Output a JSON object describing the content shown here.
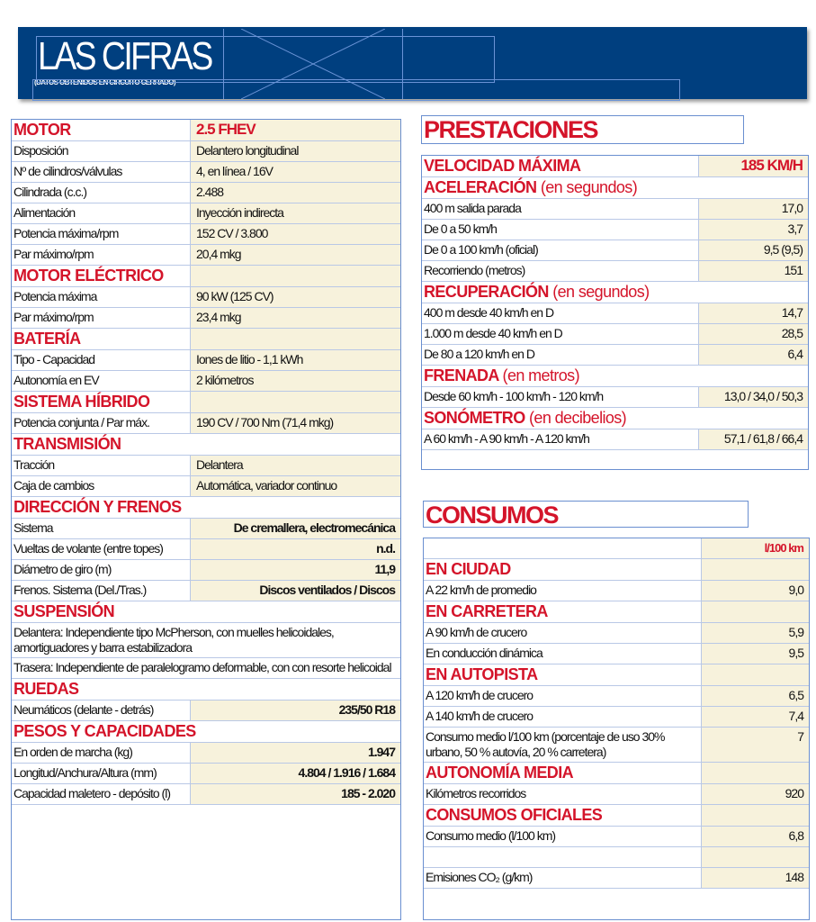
{
  "header": {
    "title": "LAS CIFRAS",
    "subtitle": "(DATOS OBTENIDOS EN CIRCUITO CERRADO)",
    "color": "#003f7f"
  },
  "accent_color": "#d4142a",
  "specs": {
    "sections": [
      {
        "title": "MOTOR",
        "value": "2.5 FHEV",
        "rows": [
          [
            "Disposición",
            "Delantero longitudinal"
          ],
          [
            "Nº de cilindros/válvulas",
            "4, en línea / 16V"
          ],
          [
            "Cilindrada (c.c.)",
            "2.488"
          ],
          [
            "Alimentación",
            "Inyección indirecta"
          ],
          [
            "Potencia máxima/rpm",
            "152 CV / 3.800"
          ],
          [
            "Par máximo/rpm",
            "20,4 mkg"
          ]
        ]
      },
      {
        "title": "MOTOR ELÉCTRICO",
        "value": "",
        "rows": [
          [
            "Potencia máxima",
            "90 kW (125 CV)"
          ],
          [
            "Par máximo/rpm",
            "23,4 mkg"
          ]
        ]
      },
      {
        "title": "BATERÍA",
        "value": "",
        "rows": [
          [
            "Tipo - Capacidad",
            "Iones de litio - 1,1 kWh"
          ],
          [
            "Autonomía en EV",
            "2 kilómetros"
          ]
        ]
      },
      {
        "title": "SISTEMA HÍBRIDO",
        "value": "",
        "rows": [
          [
            "Potencia conjunta / Par máx.",
            "190 CV / 700 Nm (71,4 mkg)"
          ]
        ]
      },
      {
        "title": "TRANSMISIÓN",
        "rows": [
          [
            "Tracción",
            "Delantera"
          ],
          [
            "Caja de cambios",
            "Automática, variador continuo"
          ]
        ]
      },
      {
        "title": "DIRECCIÓN Y FRENOS",
        "rows": [
          [
            "Sistema",
            "De cremallera, electromecánica"
          ],
          [
            "Vueltas de volante (entre topes)",
            "n.d."
          ],
          [
            "Diámetro de giro (m)",
            "11,9"
          ],
          [
            "Frenos. Sistema (Del./Tras.)",
            "Discos ventilados / Discos"
          ]
        ]
      },
      {
        "title": "SUSPENSIÓN",
        "rows": [
          [
            "Delantera: Independiente tipo McPherson, con muelles helicoidales, amortiguadores y barra estabilizadora"
          ],
          [
            "Trasera: Independiente de paralelogramo deformable, con con resorte helicoidal"
          ]
        ]
      },
      {
        "title": "RUEDAS",
        "rows": [
          [
            "Neumáticos (delante - detrás)",
            "235/50 R18"
          ]
        ]
      },
      {
        "title": "PESOS Y CAPACIDADES",
        "rows": [
          [
            "En orden de marcha (kg)",
            "1.947"
          ],
          [
            "Longitud/Anchura/Altura (mm)",
            "4.804 / 1.916 / 1.684"
          ],
          [
            "Capacidad maletero - depósito (l)",
            "185 - 2.020"
          ]
        ]
      }
    ]
  },
  "prestaciones": {
    "title": "PRESTACIONES",
    "sections": [
      {
        "title": "VELOCIDAD MÁXIMA",
        "value": "185 KM/H",
        "rows": []
      },
      {
        "title": "ACELERACIÓN",
        "unit": "(en segundos)",
        "rows": [
          [
            "400 m salida parada",
            "17,0"
          ],
          [
            "De 0 a 50 km/h",
            "3,7"
          ],
          [
            "De 0 a 100 km/h (oficial)",
            "9,5 (9,5)"
          ],
          [
            "Recorriendo (metros)",
            "151"
          ]
        ]
      },
      {
        "title": "RECUPERACIÓN",
        "unit": "(en segundos)",
        "rows": [
          [
            "400 m desde 40 km/h en D",
            "14,7"
          ],
          [
            "1.000 m desde 40 km/h en D",
            "28,5"
          ],
          [
            "De 80 a 120 km/h en D",
            "6,4"
          ]
        ]
      },
      {
        "title": "FRENADA",
        "unit": "(en metros)",
        "rows": [
          [
            "Desde 60 km/h - 100 km/h - 120 km/h",
            "13,0 / 34,0 / 50,3"
          ]
        ]
      },
      {
        "title": "SONÓMETRO",
        "unit": "(en decibelios)",
        "rows": [
          [
            "A 60 km/h - A 90 km/h - A 120 km/h",
            "57,1 / 61,8 / 66,4"
          ]
        ]
      }
    ]
  },
  "consumos": {
    "title": "CONSUMOS",
    "unit_header": "l/100 km",
    "sections": [
      {
        "title": "EN CIUDAD",
        "value": "",
        "rows": [
          [
            "A 22 km/h de promedio",
            "9,0"
          ]
        ]
      },
      {
        "title": "EN CARRETERA",
        "value": "",
        "rows": [
          [
            "A 90 km/h de crucero",
            "5,9"
          ],
          [
            "En conducción dinámica",
            "9,5"
          ]
        ]
      },
      {
        "title": "EN AUTOPISTA",
        "value": "",
        "rows": [
          [
            "A 120 km/h de crucero",
            "6,5"
          ],
          [
            "A 140 km/h de crucero",
            "7,4"
          ],
          [
            "Consumo medio l/100 km (porcentaje de uso 30% urbano, 50 % autovía, 20 % carretera)",
            "7"
          ]
        ]
      },
      {
        "title": "AUTONOMÍA MEDIA",
        "value": "",
        "rows": [
          [
            "Kilómetros recorridos",
            "920"
          ]
        ]
      },
      {
        "title": "CONSUMOS OFICIALES",
        "value": "",
        "rows": [
          [
            "Consumo medio (l/100 km)",
            "6,8"
          ],
          [
            "",
            ""
          ],
          [
            "Emisiones CO₂ (g/km)",
            "148"
          ]
        ]
      }
    ]
  }
}
